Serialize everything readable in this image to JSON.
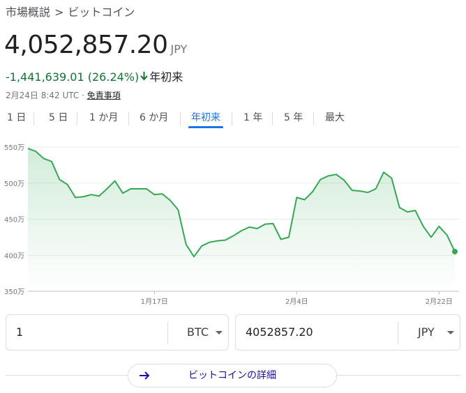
{
  "breadcrumb": {
    "parent": "市場概説",
    "separator": ">",
    "current": "ビットコイン"
  },
  "price": {
    "value": "4,052,857.20",
    "currency": "JPY"
  },
  "change": {
    "amount": "-1,441,639.01",
    "percent": "(26.24%)",
    "direction_icon": "arrow-down-icon",
    "period": "年初来",
    "color": "#137333"
  },
  "meta": {
    "timestamp": "2月24日 8:42 UTC",
    "separator": "·",
    "disclaimer": "免責事項"
  },
  "tabs": [
    {
      "label": "1 日",
      "active": false
    },
    {
      "label": "5 日",
      "active": false
    },
    {
      "label": "1 か月",
      "active": false
    },
    {
      "label": "6 か月",
      "active": false
    },
    {
      "label": "年初来",
      "active": true
    },
    {
      "label": "1 年",
      "active": false
    },
    {
      "label": "5 年",
      "active": false
    },
    {
      "label": "最大",
      "active": false
    }
  ],
  "chart_data": {
    "type": "area",
    "line_color": "#34a853",
    "fill_color": "#e6f4ea",
    "y_tick_labels": [
      "550万",
      "500万",
      "450万",
      "400万",
      "350万"
    ],
    "y_ticks": [
      5500000,
      5000000,
      4500000,
      4000000,
      3500000
    ],
    "ylim": [
      3500000,
      5500000
    ],
    "x_range": [
      "2021-01-01",
      "2021-02-24"
    ],
    "x_ticks": [
      {
        "date": "2021-01-17",
        "label": "1月17日"
      },
      {
        "date": "2021-02-04",
        "label": "2月4日"
      },
      {
        "date": "2021-02-22",
        "label": "2月22日"
      }
    ],
    "series": [
      {
        "x": [
          "2021-01-01",
          "2021-01-02",
          "2021-01-03",
          "2021-01-04",
          "2021-01-05",
          "2021-01-06",
          "2021-01-07",
          "2021-01-08",
          "2021-01-09",
          "2021-01-10",
          "2021-01-11",
          "2021-01-12",
          "2021-01-13",
          "2021-01-14",
          "2021-01-15",
          "2021-01-16",
          "2021-01-17",
          "2021-01-18",
          "2021-01-19",
          "2021-01-20",
          "2021-01-21",
          "2021-01-22",
          "2021-01-23",
          "2021-01-24",
          "2021-01-25",
          "2021-01-26",
          "2021-01-27",
          "2021-01-28",
          "2021-01-29",
          "2021-01-30",
          "2021-01-31",
          "2021-02-01",
          "2021-02-02",
          "2021-02-03",
          "2021-02-04",
          "2021-02-05",
          "2021-02-06",
          "2021-02-07",
          "2021-02-08",
          "2021-02-09",
          "2021-02-10",
          "2021-02-11",
          "2021-02-12",
          "2021-02-13",
          "2021-02-14",
          "2021-02-15",
          "2021-02-16",
          "2021-02-17",
          "2021-02-18",
          "2021-02-19",
          "2021-02-20",
          "2021-02-21",
          "2021-02-22",
          "2021-02-23",
          "2021-02-24"
        ],
        "y": [
          5480000,
          5440000,
          5340000,
          5300000,
          5050000,
          4980000,
          4800000,
          4810000,
          4840000,
          4820000,
          4920000,
          5030000,
          4860000,
          4920000,
          4920000,
          4920000,
          4840000,
          4850000,
          4760000,
          4630000,
          4150000,
          3980000,
          4130000,
          4180000,
          4200000,
          4210000,
          4270000,
          4340000,
          4390000,
          4370000,
          4430000,
          4440000,
          4220000,
          4250000,
          4800000,
          4770000,
          4880000,
          5050000,
          5100000,
          5120000,
          5040000,
          4900000,
          4890000,
          4870000,
          4920000,
          5150000,
          5070000,
          4660000,
          4600000,
          4620000,
          4400000,
          4250000,
          4400000,
          4280000,
          4050000
        ]
      }
    ],
    "grid": true,
    "endpoint_marker": true
  },
  "converter": {
    "left": {
      "value": "1",
      "unit": "BTC"
    },
    "right": {
      "value": "4052857.20",
      "unit": "JPY"
    }
  },
  "more_button": {
    "label": "ビットコインの詳細",
    "icon": "arrow-right-icon",
    "color": "#1a0dab"
  }
}
